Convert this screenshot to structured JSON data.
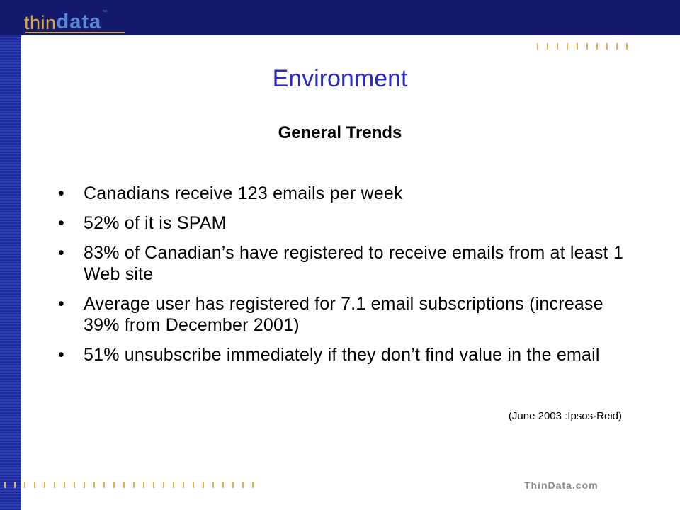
{
  "brand": {
    "logo_thin": "thin",
    "logo_data": "data",
    "logo_tm": "™",
    "colors": {
      "navy": "#141a6b",
      "orange": "#e3a431",
      "blue": "#5a86d6",
      "title_blue": "#2a2acb"
    }
  },
  "slide": {
    "title": "Environment",
    "subtitle": "General Trends",
    "bullets": [
      {
        "marker": "•",
        "text": "Canadians receive 123 emails per week"
      },
      {
        "marker": "•",
        "text": "52% of it is SPAM"
      },
      {
        "marker": "•",
        "text": "83% of Canadian’s have registered to receive emails from at least 1 Web site"
      },
      {
        "marker": "•",
        "text": "Average user has registered for 7.1 email subscriptions (increase 39% from December 2001)"
      },
      {
        "marker": "•",
        "text": "51% unsubscribe immediately if they don’t find value in the email"
      }
    ],
    "source": "(June 2003 :Ipsos-Reid)"
  },
  "footer": {
    "site": "ThinData.com"
  }
}
